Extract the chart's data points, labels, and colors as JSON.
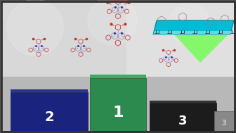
{
  "fig_width": 3.36,
  "fig_height": 1.89,
  "dpi": 100,
  "border_color": "#555555",
  "bg_color": "#c8c8c8",
  "podium1_color": "#2d8a4e",
  "podium2_color": "#1a237e",
  "podium3_color": "#1c1c1c",
  "podium1_label": "1",
  "podium2_label": "2",
  "podium3_label": "3",
  "label_color": "white",
  "sky_color": "#d0d0d0",
  "floor_color": "#b0b0b0",
  "tray_color": "#00bcd4",
  "tray_top_color": "#80deea",
  "laser_color": "#66ff44",
  "mol_color_acceptor": "#8888cc",
  "mol_color_donor": "#cc3333"
}
